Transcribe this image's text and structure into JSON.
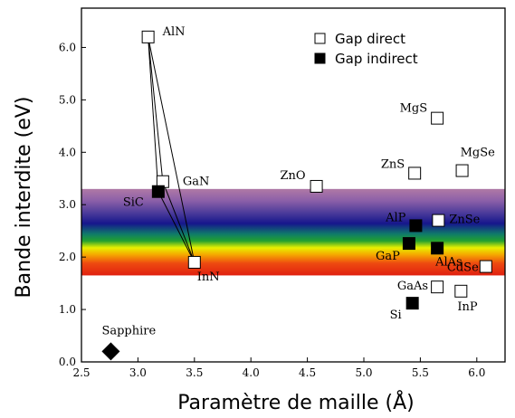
{
  "chart_data": {
    "type": "scatter",
    "title": "",
    "xlabel": "Paramètre de maille (Å)",
    "ylabel": "Bande interdite (eV)",
    "xlim": [
      2.5,
      6.25
    ],
    "ylim": [
      0.0,
      6.75
    ],
    "x_ticks": [
      "2.5",
      "3.0",
      "3.5",
      "4.0",
      "4.5",
      "5.0",
      "5.5",
      "6.0"
    ],
    "y_ticks": [
      "0.0",
      "1.0",
      "2.0",
      "3.0",
      "4.0",
      "5.0",
      "6.0"
    ],
    "grid": false,
    "legend": {
      "placement": "top-right",
      "entries": [
        {
          "label": "Gap direct",
          "marker": "open-square"
        },
        {
          "label": "Gap indirect",
          "marker": "filled-square"
        }
      ]
    },
    "visible_band_ev": [
      1.65,
      3.3
    ],
    "series": [
      {
        "name": "Gap direct",
        "marker": "open-square",
        "points": [
          {
            "label": "AlN",
            "x": 3.09,
            "y": 6.2
          },
          {
            "label": "GaN",
            "x": 3.22,
            "y": 3.44
          },
          {
            "label": "InN",
            "x": 3.5,
            "y": 1.9
          },
          {
            "label": "ZnO",
            "x": 4.58,
            "y": 3.35
          },
          {
            "label": "MgS",
            "x": 5.65,
            "y": 4.65
          },
          {
            "label": "ZnS",
            "x": 5.45,
            "y": 3.6
          },
          {
            "label": "MgSe",
            "x": 5.87,
            "y": 3.65
          },
          {
            "label": "ZnSe",
            "x": 5.66,
            "y": 2.7
          },
          {
            "label": "CdSe",
            "x": 6.08,
            "y": 1.82
          },
          {
            "label": "GaAs",
            "x": 5.65,
            "y": 1.43
          },
          {
            "label": "InP",
            "x": 5.86,
            "y": 1.35
          }
        ]
      },
      {
        "name": "Gap indirect",
        "marker": "filled-square",
        "points": [
          {
            "label": "SiC",
            "x": 3.18,
            "y": 3.25
          },
          {
            "label": "AlP",
            "x": 5.46,
            "y": 2.6
          },
          {
            "label": "GaP",
            "x": 5.4,
            "y": 2.26
          },
          {
            "label": "AlAs",
            "x": 5.65,
            "y": 2.17
          },
          {
            "label": "Si",
            "x": 5.43,
            "y": 1.12
          }
        ]
      },
      {
        "name": "",
        "marker": "filled-diamond",
        "points": [
          {
            "label": "Sapphire",
            "x": 2.76,
            "y": 0.2
          }
        ]
      }
    ],
    "connections": [
      [
        "AlN",
        "GaN"
      ],
      [
        "GaN",
        "InN"
      ],
      [
        "InN",
        "AlN"
      ],
      [
        "AlN",
        "SiC"
      ],
      [
        "SiC",
        "InN"
      ]
    ]
  }
}
